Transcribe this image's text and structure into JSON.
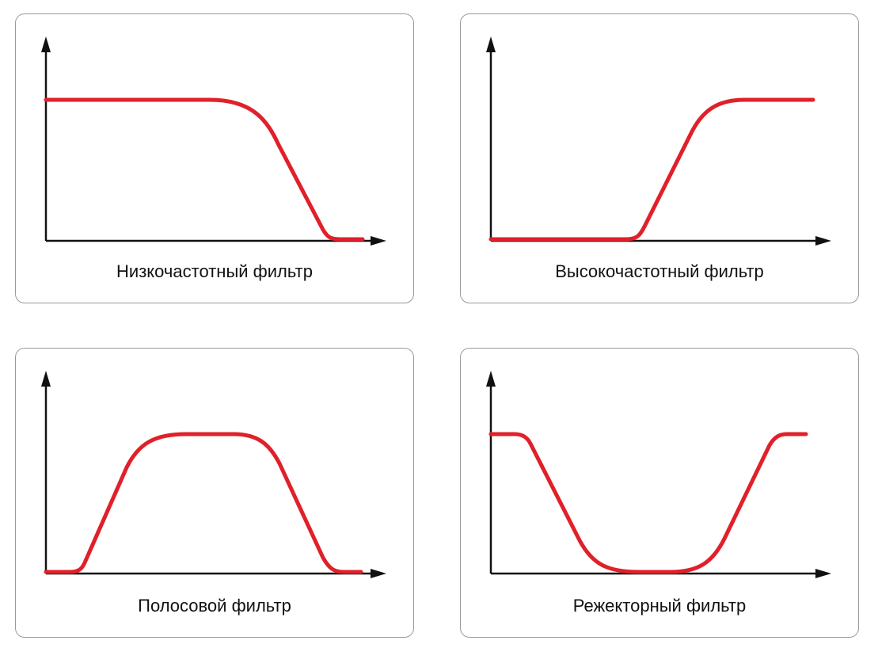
{
  "diagram": {
    "curve_color": "#e0202a",
    "axis_color": "#111111",
    "panels": [
      {
        "title": "Низкочастотный фильтр",
        "type": "low-pass"
      },
      {
        "title": "Высокочастотный фильтр",
        "type": "high-pass"
      },
      {
        "title": "Полосовой фильтр",
        "type": "band-pass"
      },
      {
        "title": "Режекторный фильтр",
        "type": "band-stop"
      }
    ]
  }
}
